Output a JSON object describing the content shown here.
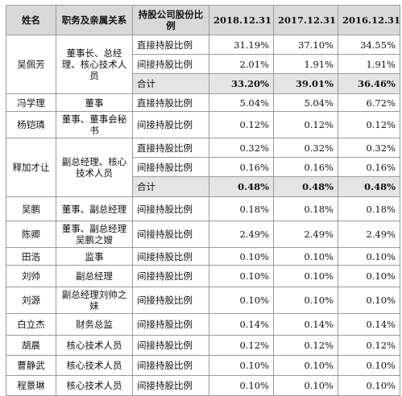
{
  "header": {
    "name": "姓名",
    "relation": "职务及亲属关系",
    "type": "持股公司股份比例",
    "y2018": "2018.12.31",
    "y2017": "2017.12.31",
    "y2016": "2016.12.31"
  },
  "people": [
    {
      "name": "吴佩芳",
      "relation": "董事长、总经理、核心技术人员",
      "rows": [
        {
          "type": "直接持股比例",
          "v2018": "31.19%",
          "v2017": "37.10%",
          "v2016": "34.55%"
        },
        {
          "type": "间接持股比例",
          "v2018": "2.01%",
          "v2017": "1.91%",
          "v2016": "1.91%"
        },
        {
          "type": "合计",
          "v2018": "33.20%",
          "v2017": "39.01%",
          "v2016": "36.46%"
        }
      ]
    },
    {
      "name": "冯学理",
      "relation": "董事",
      "rows": [
        {
          "type": "直接持股比例",
          "v2018": "5.04%",
          "v2017": "5.04%",
          "v2016": "6.72%"
        }
      ]
    },
    {
      "name": "杨铠璘",
      "relation": "董事、董事会秘书",
      "rows": [
        {
          "type": "间接持股比例",
          "v2018": "0.12%",
          "v2017": "0.12%",
          "v2016": "0.12%"
        }
      ]
    },
    {
      "name": "释加才让",
      "relation": "副总经理、核心技术人员",
      "rows": [
        {
          "type": "直接持股比例",
          "v2018": "0.32%",
          "v2017": "0.32%",
          "v2016": "0.32%"
        },
        {
          "type": "间接持股比例",
          "v2018": "0.16%",
          "v2017": "0.16%",
          "v2016": "0.16%"
        },
        {
          "type": "合计",
          "v2018": "0.48%",
          "v2017": "0.48%",
          "v2016": "0.48%"
        }
      ]
    },
    {
      "name": "吴鹏",
      "relation": "董事、副总经理",
      "rows": [
        {
          "type": "间接持股比例",
          "v2018": "0.18%",
          "v2017": "0.18%",
          "v2016": "0.18%"
        }
      ]
    },
    {
      "name": "陈卿",
      "relation": "董事、副总经理吴鹏之嫂",
      "rows": [
        {
          "type": "间接持股比例",
          "v2018": "2.49%",
          "v2017": "2.49%",
          "v2016": "2.49%"
        }
      ]
    },
    {
      "name": "田浩",
      "relation": "监事",
      "rows": [
        {
          "type": "间接持股比例",
          "v2018": "0.10%",
          "v2017": "0.10%",
          "v2016": "0.10%"
        }
      ]
    },
    {
      "name": "刘帅",
      "relation": "副总经理",
      "rows": [
        {
          "type": "间接持股比例",
          "v2018": "0.10%",
          "v2017": "0.10%",
          "v2016": "0.10%"
        }
      ]
    },
    {
      "name": "刘源",
      "relation": "副总经理刘帅之妹",
      "rows": [
        {
          "type": "间接持股比例",
          "v2018": "0.10%",
          "v2017": "0.10%",
          "v2016": "0.10%"
        }
      ]
    },
    {
      "name": "白立杰",
      "relation": "财务总监",
      "rows": [
        {
          "type": "间接持股比例",
          "v2018": "0.14%",
          "v2017": "0.14%",
          "v2016": "0.14%"
        }
      ]
    },
    {
      "name": "胡晨",
      "relation": "核心技术人员",
      "rows": [
        {
          "type": "间接持股比例",
          "v2018": "0.12%",
          "v2017": "0.12%",
          "v2016": "0.12%"
        }
      ]
    },
    {
      "name": "曹静武",
      "relation": "核心技术人员",
      "rows": [
        {
          "type": "间接持股比例",
          "v2018": "0.10%",
          "v2017": "0.10%",
          "v2016": "0.10%"
        }
      ]
    },
    {
      "name": "程景琳",
      "relation": "核心技术人员",
      "rows": [
        {
          "type": "间接持股比例",
          "v2018": "0.10%",
          "v2017": "0.10%",
          "v2016": "0.10%"
        }
      ]
    }
  ]
}
